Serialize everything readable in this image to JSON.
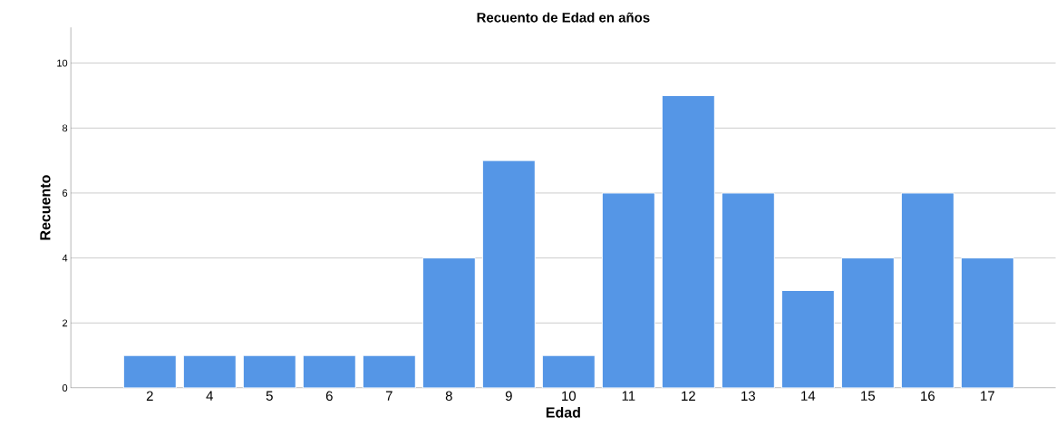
{
  "chart_data": {
    "type": "bar",
    "title": "Recuento de Edad en años",
    "xlabel": "Edad",
    "ylabel": "Recuento",
    "categories": [
      "2",
      "4",
      "5",
      "6",
      "7",
      "8",
      "9",
      "10",
      "11",
      "12",
      "13",
      "14",
      "15",
      "16",
      "17"
    ],
    "values": [
      1,
      1,
      1,
      1,
      1,
      4,
      7,
      1,
      6,
      9,
      6,
      3,
      4,
      6,
      4
    ],
    "color": "#5596e6",
    "ylim": [
      0,
      11.1
    ],
    "yticks": [
      0,
      2,
      4,
      6,
      8,
      10
    ],
    "grid": "y"
  }
}
